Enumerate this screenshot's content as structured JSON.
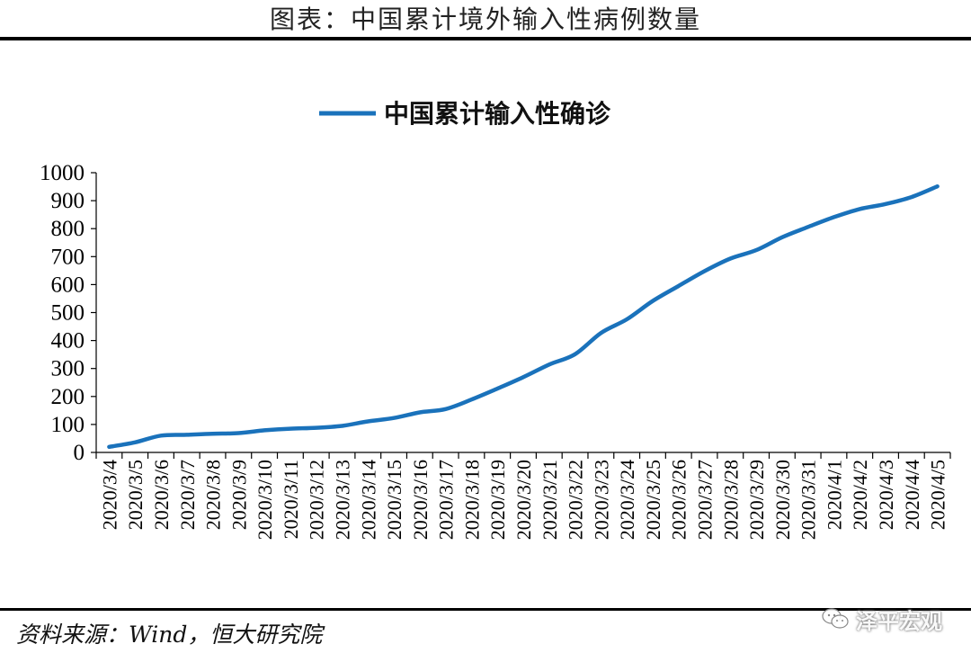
{
  "figure": {
    "title": "图表：中国累计境外输入性病例数量",
    "source": "资料来源：Wind，恒大研究院",
    "watermark": "泽平宏观",
    "watermark_icon": "wechat-icon"
  },
  "chart_data": {
    "type": "line",
    "title": "",
    "xlabel": "",
    "ylabel": "",
    "ylim": [
      0,
      1000
    ],
    "yticks": [
      0,
      100,
      200,
      300,
      400,
      500,
      600,
      700,
      800,
      900,
      1000
    ],
    "grid": false,
    "legend_position": "top-center",
    "categories": [
      "2020/3/4",
      "2020/3/5",
      "2020/3/6",
      "2020/3/7",
      "2020/3/8",
      "2020/3/9",
      "2020/3/10",
      "2020/3/11",
      "2020/3/12",
      "2020/3/13",
      "2020/3/14",
      "2020/3/15",
      "2020/3/16",
      "2020/3/17",
      "2020/3/18",
      "2020/3/19",
      "2020/3/20",
      "2020/3/21",
      "2020/3/22",
      "2020/3/23",
      "2020/3/24",
      "2020/3/25",
      "2020/3/26",
      "2020/3/27",
      "2020/3/28",
      "2020/3/29",
      "2020/3/30",
      "2020/3/31",
      "2020/4/1",
      "2020/4/2",
      "2020/4/3",
      "2020/4/4",
      "2020/4/5"
    ],
    "series": [
      {
        "name": "中国累计输入性确诊",
        "color": "#1a72bb",
        "values": [
          20,
          36,
          60,
          63,
          67,
          69,
          79,
          85,
          88,
          95,
          111,
          123,
          143,
          155,
          189,
          228,
          269,
          314,
          351,
          427,
          476,
          541,
          595,
          648,
          693,
          723,
          769,
          806,
          841,
          870,
          888,
          913,
          951
        ]
      }
    ]
  }
}
